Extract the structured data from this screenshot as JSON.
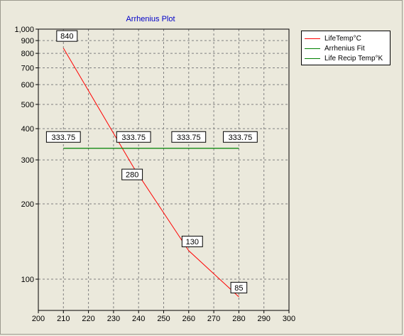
{
  "colors": {
    "background": "#ebe9dc",
    "plot_bg": "#ebe9dc",
    "grid": "#808080",
    "title": "#0000c8",
    "series_life_temp": "#ff0000",
    "series_arrhenius_fit": "#008000",
    "series_life_recip": "#008000"
  },
  "chart_data": {
    "type": "line",
    "title": "Arrhenius Plot",
    "xlabel": "",
    "ylabel": "",
    "xlim": [
      200,
      300
    ],
    "ylim": [
      75,
      1000
    ],
    "y_scale": "log",
    "grid": true,
    "legend_position": "right-top",
    "x_ticks": [
      "200",
      "210",
      "220",
      "230",
      "240",
      "250",
      "260",
      "270",
      "280",
      "290",
      "300"
    ],
    "y_ticks": [
      {
        "value": 100,
        "label": "100"
      },
      {
        "value": 200,
        "label": "200"
      },
      {
        "value": 300,
        "label": "300"
      },
      {
        "value": 400,
        "label": "400"
      },
      {
        "value": 500,
        "label": "500"
      },
      {
        "value": 600,
        "label": "600"
      },
      {
        "value": 700,
        "label": "700"
      },
      {
        "value": 800,
        "label": "800"
      },
      {
        "value": 900,
        "label": "900"
      },
      {
        "value": 1000,
        "label": "1,000"
      }
    ],
    "series": [
      {
        "name": "LifeTemp°C",
        "color": "#ff0000",
        "x": [
          210,
          238,
          260,
          280
        ],
        "y": [
          840,
          280,
          130,
          85
        ],
        "labels": [
          "840",
          "280",
          "130",
          "85"
        ]
      },
      {
        "name": "Arrhenius Fit",
        "color": "#008000",
        "x": [
          210,
          280
        ],
        "y": [
          333.75,
          333.75
        ],
        "labels": []
      },
      {
        "name": "Life Recip Temp°K",
        "color": "#008000",
        "x": [
          210,
          240,
          260,
          280
        ],
        "y": [
          333.75,
          333.75,
          333.75,
          333.75
        ],
        "labels": [
          "333.75",
          "333.75",
          "333.75",
          "333.75"
        ]
      }
    ]
  }
}
